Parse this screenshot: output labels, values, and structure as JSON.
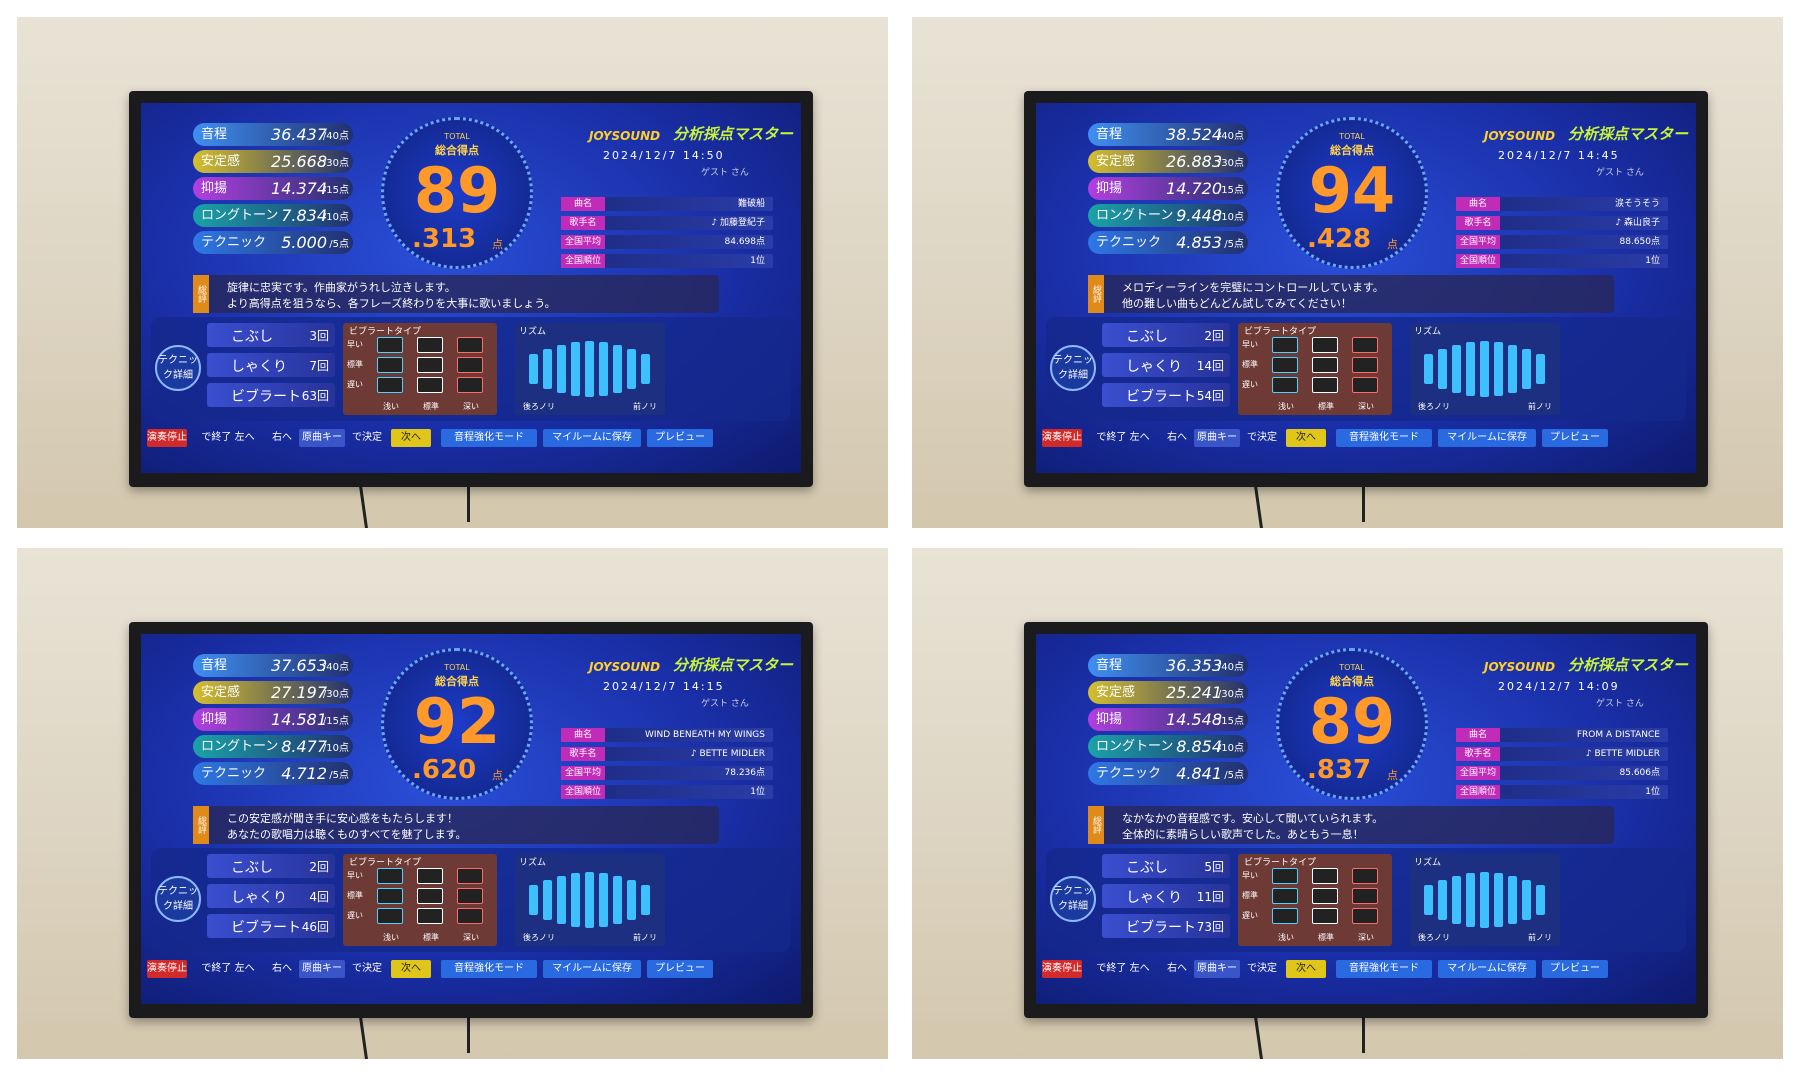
{
  "labels": {
    "total": "TOTAL",
    "total_title": "総合得点",
    "brand": "JOYSOUND",
    "mode": "分析採点マスター",
    "song": "曲名",
    "artist": "歌手名",
    "average": "全国平均",
    "rank": "全国順位",
    "review": "総評",
    "tech_title": "テクニック詳細",
    "vibrato_type": "ビブラートタイプ",
    "speed": [
      "早い",
      "標準",
      "遅い"
    ],
    "depth": [
      "浅い",
      "標準",
      "深い"
    ],
    "rhythm": "リズム",
    "rhythm_left": "後ろノリ",
    "rhythm_right": "前ノリ",
    "footer": [
      "演奏停止",
      "で終了 左へ",
      "右へ",
      "原曲キー",
      "で決定",
      "次へ",
      "音程強化モード",
      "マイルームに保存",
      "プレビュー"
    ]
  },
  "panels": [
    {
      "scores": [
        {
          "label": "音程",
          "value": "36.437",
          "max": "/40点"
        },
        {
          "label": "安定感",
          "value": "25.668",
          "max": "/30点"
        },
        {
          "label": "抑揚",
          "value": "14.374",
          "max": "/15点"
        },
        {
          "label": "ロングトーン",
          "value": "7.834",
          "max": "/10点"
        },
        {
          "label": "テクニック",
          "value": "5.000",
          "max": "/5点"
        }
      ],
      "total_int": "89",
      "total_dec": ".313",
      "unit": "点",
      "datetime": "2024/12/7 14:50",
      "user": "ゲスト さん",
      "song": "難破船",
      "artist": "♪ 加藤登紀子",
      "average": "84.698点",
      "rank": "1位",
      "comment": [
        "旋律に忠実です。作曲家がうれし泣きします。",
        "より高得点を狙うなら、各フレーズ終わりを大事に歌いましょう。"
      ],
      "techniques": [
        {
          "label": "こぶし",
          "count": "3回"
        },
        {
          "label": "しゃくり",
          "count": "7回"
        },
        {
          "label": "ビブラート",
          "count": "63回"
        }
      ]
    },
    {
      "scores": [
        {
          "label": "音程",
          "value": "38.524",
          "max": "/40点"
        },
        {
          "label": "安定感",
          "value": "26.883",
          "max": "/30点"
        },
        {
          "label": "抑揚",
          "value": "14.720",
          "max": "/15点"
        },
        {
          "label": "ロングトーン",
          "value": "9.448",
          "max": "/10点"
        },
        {
          "label": "テクニック",
          "value": "4.853",
          "max": "/5点"
        }
      ],
      "total_int": "94",
      "total_dec": ".428",
      "unit": "点",
      "datetime": "2024/12/7 14:45",
      "user": "ゲスト さん",
      "song": "涙そうそう",
      "artist": "♪ 森山良子",
      "average": "88.650点",
      "rank": "1位",
      "comment": [
        "メロディーラインを完璧にコントロールしています。",
        "他の難しい曲もどんどん試してみてください！"
      ],
      "techniques": [
        {
          "label": "こぶし",
          "count": "2回"
        },
        {
          "label": "しゃくり",
          "count": "14回"
        },
        {
          "label": "ビブラート",
          "count": "54回"
        }
      ]
    },
    {
      "scores": [
        {
          "label": "音程",
          "value": "37.653",
          "max": "/40点"
        },
        {
          "label": "安定感",
          "value": "27.197",
          "max": "/30点"
        },
        {
          "label": "抑揚",
          "value": "14.581",
          "max": "/15点"
        },
        {
          "label": "ロングトーン",
          "value": "8.477",
          "max": "/10点"
        },
        {
          "label": "テクニック",
          "value": "4.712",
          "max": "/5点"
        }
      ],
      "total_int": "92",
      "total_dec": ".620",
      "unit": "点",
      "datetime": "2024/12/7 14:15",
      "user": "ゲスト さん",
      "song": "WIND BENEATH MY WINGS",
      "artist": "♪ BETTE MIDLER",
      "average": "78.236点",
      "rank": "1位",
      "comment": [
        "この安定感が聞き手に安心感をもたらします！",
        "あなたの歌唱力は聴くものすべてを魅了します。"
      ],
      "techniques": [
        {
          "label": "こぶし",
          "count": "2回"
        },
        {
          "label": "しゃくり",
          "count": "4回"
        },
        {
          "label": "ビブラート",
          "count": "46回"
        }
      ]
    },
    {
      "scores": [
        {
          "label": "音程",
          "value": "36.353",
          "max": "/40点"
        },
        {
          "label": "安定感",
          "value": "25.241",
          "max": "/30点"
        },
        {
          "label": "抑揚",
          "value": "14.548",
          "max": "/15点"
        },
        {
          "label": "ロングトーン",
          "value": "8.854",
          "max": "/10点"
        },
        {
          "label": "テクニック",
          "value": "4.841",
          "max": "/5点"
        }
      ],
      "total_int": "89",
      "total_dec": ".837",
      "unit": "点",
      "datetime": "2024/12/7 14:09",
      "user": "ゲスト さん",
      "song": "FROM A DISTANCE",
      "artist": "♪ BETTE MIDLER",
      "average": "85.606点",
      "rank": "1位",
      "comment": [
        "なかなかの音程感です。安心して聞いていられます。",
        "全体的に素晴らしい歌声でした。あともう一息！"
      ],
      "techniques": [
        {
          "label": "こぶし",
          "count": "5回"
        },
        {
          "label": "しゃくり",
          "count": "11回"
        },
        {
          "label": "ビブラート",
          "count": "73回"
        }
      ]
    }
  ]
}
